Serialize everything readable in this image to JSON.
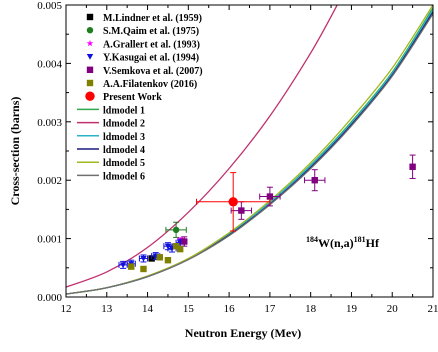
{
  "chart_data": {
    "type": "scatter",
    "xlabel": "Neutron Energy (Mev)",
    "ylabel": "Cross-section (barns)",
    "xlim": [
      12,
      21
    ],
    "ylim": [
      0,
      0.005
    ],
    "x_ticks": [
      12,
      13,
      14,
      15,
      16,
      17,
      18,
      19,
      20,
      21
    ],
    "y_ticks": [
      0.0,
      0.001,
      0.002,
      0.003,
      0.004,
      0.005
    ],
    "x_tick_labels": [
      "12",
      "13",
      "14",
      "15",
      "16",
      "17",
      "18",
      "19",
      "20",
      "21"
    ],
    "y_tick_labels": [
      "0.000",
      "0.001",
      "0.002",
      "0.003",
      "0.004",
      "0.005"
    ],
    "legend_position": "top-left",
    "annotation": {
      "pre_sup": "184",
      "mid": "W(n,a)",
      "post_sup": "181",
      "post": "Hf"
    },
    "experimental_series": [
      {
        "name": "M.Lindner et al. (1959)",
        "marker": "square",
        "color": "#000000",
        "points": [
          {
            "x": 14.1,
            "y": 0.00066,
            "yerr": 4e-05
          }
        ]
      },
      {
        "name": "S.M.Qaim et al. (1975)",
        "marker": "circle",
        "color": "#1e7d1e",
        "points": [
          {
            "x": 14.7,
            "y": 0.00115,
            "xerr": 0.25,
            "yerr": 0.00013
          }
        ]
      },
      {
        "name": "A.Grallert et al. (1993)",
        "marker": "star",
        "color": "#ff00ff",
        "points": [
          {
            "x": 14.8,
            "y": 0.00097,
            "yerr": 4e-05
          }
        ]
      },
      {
        "name": "Y.Kasugai et al. (1994)",
        "marker": "triangle-down",
        "color": "#1010e0",
        "points": [
          {
            "x": 13.4,
            "y": 0.00055,
            "xerr": 0.1,
            "yerr": 6e-05
          },
          {
            "x": 13.6,
            "y": 0.00057,
            "xerr": 0.1,
            "yerr": 6e-05
          },
          {
            "x": 13.9,
            "y": 0.00066,
            "xerr": 0.1,
            "yerr": 6e-05
          },
          {
            "x": 14.2,
            "y": 0.0007,
            "xerr": 0.1,
            "yerr": 6e-05
          },
          {
            "x": 14.5,
            "y": 0.00087,
            "xerr": 0.1,
            "yerr": 6e-05
          },
          {
            "x": 14.6,
            "y": 0.00083,
            "xerr": 0.1,
            "yerr": 6e-05
          },
          {
            "x": 14.8,
            "y": 0.00093,
            "xerr": 0.1,
            "yerr": 6e-05
          }
        ]
      },
      {
        "name": "V.Semkova et al. (2007)",
        "marker": "square",
        "color": "#800080",
        "points": [
          {
            "x": 14.9,
            "y": 0.00095,
            "yerr": 8e-05
          },
          {
            "x": 16.3,
            "y": 0.00148,
            "xerr": 0.25,
            "yerr": 0.00015
          },
          {
            "x": 17.0,
            "y": 0.00172,
            "xerr": 0.25,
            "yerr": 0.00016
          },
          {
            "x": 18.1,
            "y": 0.002,
            "xerr": 0.25,
            "yerr": 0.00018
          },
          {
            "x": 20.5,
            "y": 0.00223,
            "yerr": 0.0002
          }
        ]
      },
      {
        "name": "A.A.Filatenkov (2016)",
        "marker": "square",
        "color": "#808000",
        "points": [
          {
            "x": 13.6,
            "y": 0.00052
          },
          {
            "x": 13.9,
            "y": 0.00048
          },
          {
            "x": 14.3,
            "y": 0.00068
          },
          {
            "x": 14.5,
            "y": 0.00063
          },
          {
            "x": 14.7,
            "y": 0.00087
          },
          {
            "x": 14.8,
            "y": 0.00082
          }
        ]
      },
      {
        "name": "Present Work",
        "marker": "circle-large",
        "color": "#ff0000",
        "points": [
          {
            "x": 16.1,
            "y": 0.00163,
            "xerr": 0.9,
            "yerr": 0.0005
          }
        ]
      }
    ],
    "model_series": [
      {
        "name": "ldmodel 1",
        "color": "#2fa84f",
        "x": [
          12,
          13,
          14,
          15,
          16,
          17,
          18,
          19,
          20,
          21
        ],
        "y": [
          5e-05,
          0.00016,
          0.00035,
          0.00065,
          0.00108,
          0.00162,
          0.00226,
          0.003,
          0.00385,
          0.00495
        ]
      },
      {
        "name": "ldmodel 2",
        "color": "#c0306e",
        "x": [
          12,
          13,
          14,
          15,
          16,
          17,
          18,
          18.65
        ],
        "y": [
          0.00017,
          0.00043,
          0.00085,
          0.00145,
          0.0022,
          0.0031,
          0.00418,
          0.005
        ]
      },
      {
        "name": "ldmodel 3",
        "color": "#2bb3c9",
        "x": [
          12,
          13,
          14,
          15,
          16,
          17,
          18,
          19,
          20,
          21
        ],
        "y": [
          5e-05,
          0.00016,
          0.00035,
          0.00065,
          0.00108,
          0.00162,
          0.00225,
          0.00298,
          0.00383,
          0.00492
        ]
      },
      {
        "name": "ldmodel 4",
        "color": "#1a1a80",
        "x": [
          12,
          13,
          14,
          15,
          16,
          17,
          18,
          19,
          20,
          21
        ],
        "y": [
          5e-05,
          0.00016,
          0.00035,
          0.00064,
          0.00106,
          0.00159,
          0.00222,
          0.00295,
          0.0038,
          0.00488
        ]
      },
      {
        "name": "ldmodel 5",
        "color": "#a0b820",
        "x": [
          12,
          13,
          14,
          15,
          16,
          17,
          18,
          19,
          20,
          21
        ],
        "y": [
          5e-05,
          0.00016,
          0.00036,
          0.00066,
          0.0011,
          0.00165,
          0.0023,
          0.00306,
          0.00392,
          0.005
        ]
      },
      {
        "name": "ldmodel 6",
        "color": "#707070",
        "x": [
          12,
          13,
          14,
          15,
          16,
          17,
          18,
          19,
          20,
          21
        ],
        "y": [
          5e-05,
          0.00016,
          0.00035,
          0.00064,
          0.00105,
          0.00158,
          0.0022,
          0.00293,
          0.00378,
          0.00485
        ]
      }
    ]
  }
}
